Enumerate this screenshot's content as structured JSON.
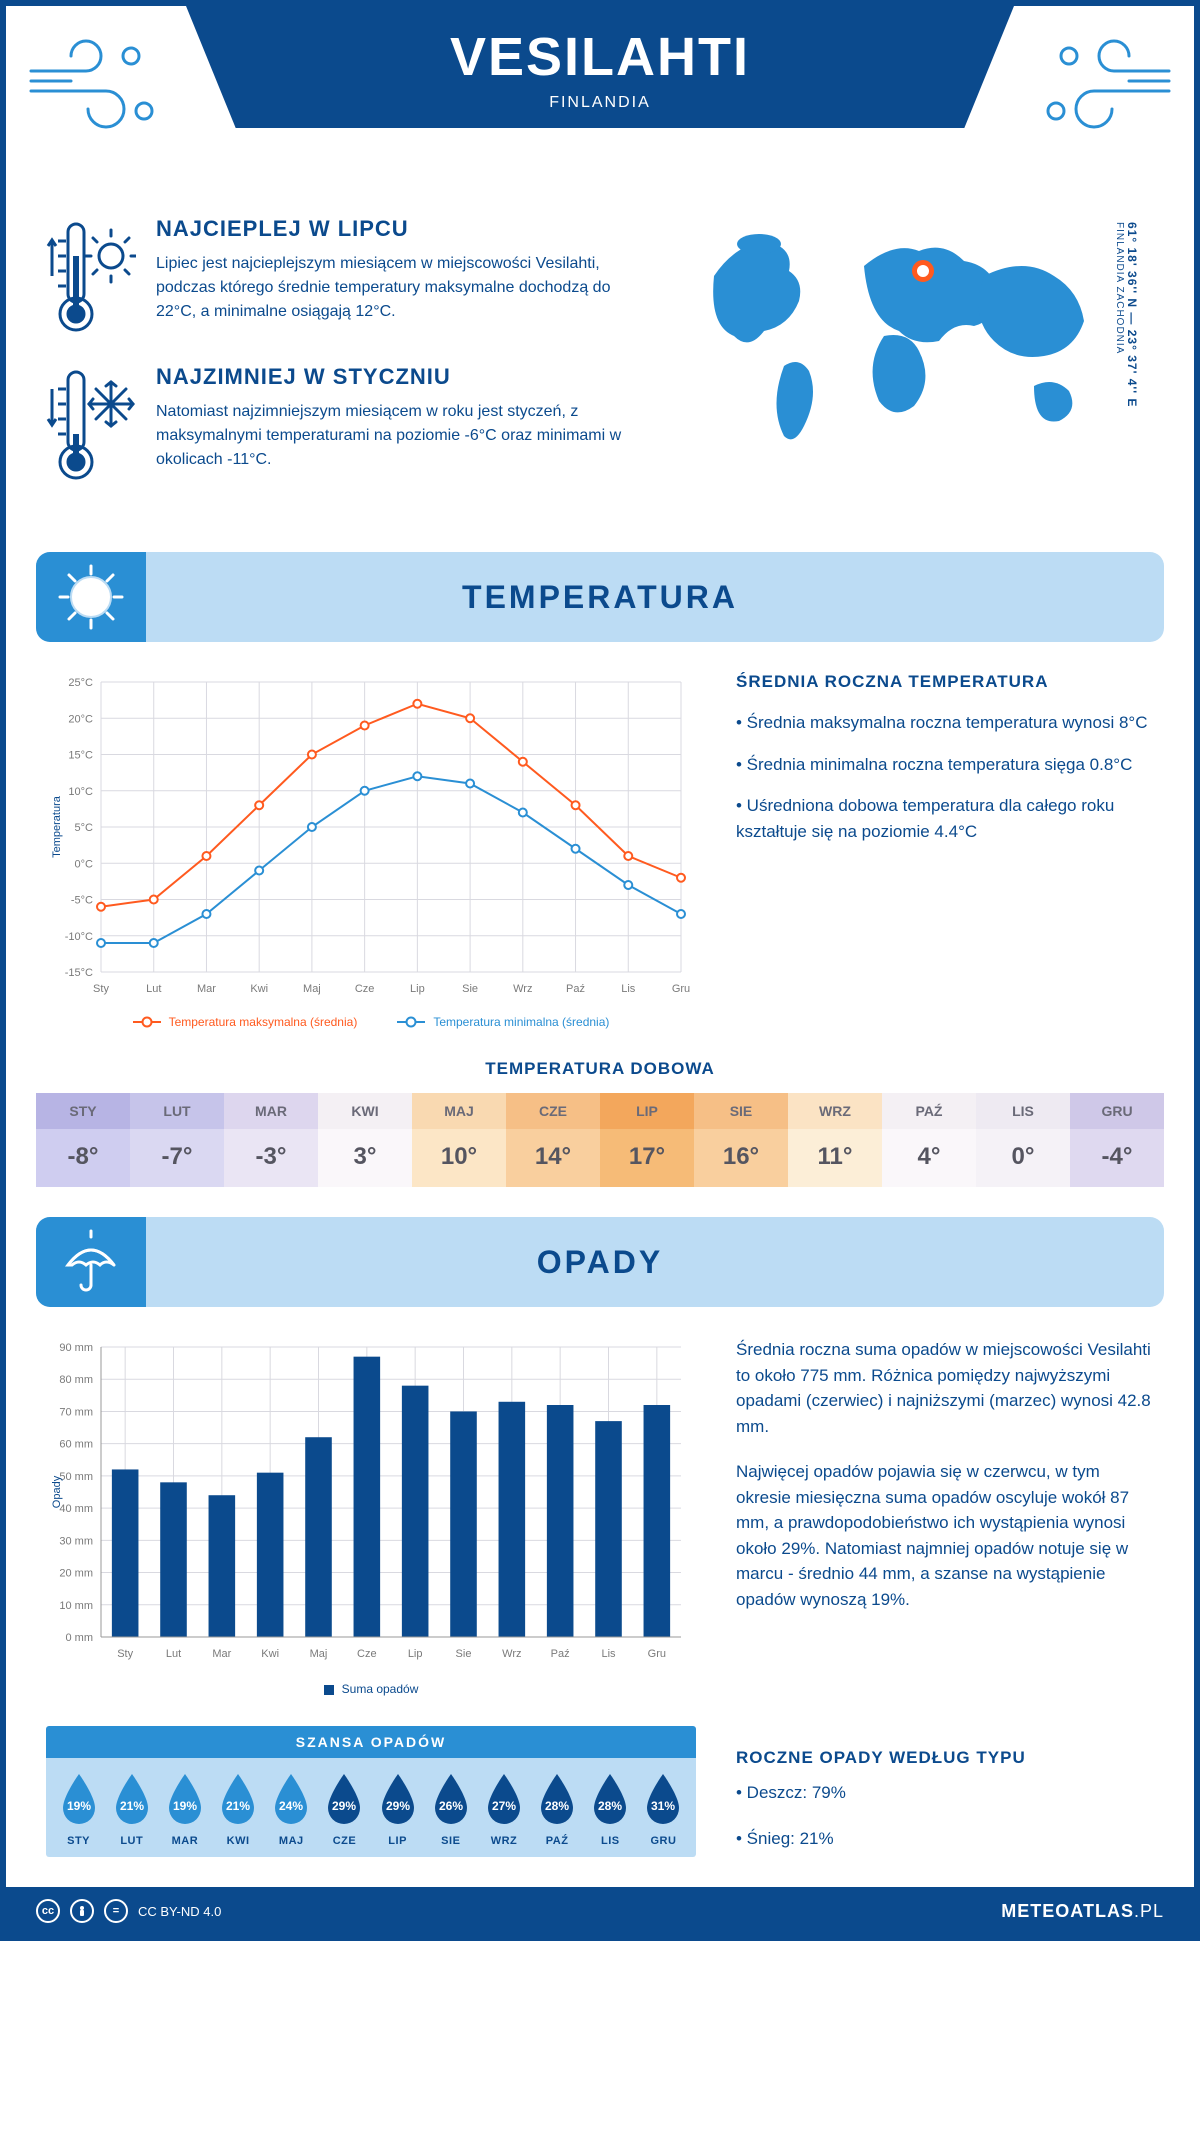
{
  "header": {
    "title": "VESILAHTI",
    "subtitle": "FINLANDIA"
  },
  "coords": {
    "main": "61° 18' 36'' N — 23° 37' 4'' E",
    "region": "FINLANDIA ZACHODNIA"
  },
  "intro": {
    "warm": {
      "title": "NAJCIEPLEJ W LIPCU",
      "text": "Lipiec jest najcieplejszym miesiącem w miejscowości Vesilahti, podczas którego średnie temperatury maksymalne dochodzą do 22°C, a minimalne osiągają 12°C."
    },
    "cold": {
      "title": "NAJZIMNIEJ W STYCZNIU",
      "text": "Natomiast najzimniejszym miesiącem w roku jest styczeń, z maksymalnymi temperaturami na poziomie -6°C oraz minimami w okolicach -11°C."
    }
  },
  "sections": {
    "temperature": "TEMPERATURA",
    "precipitation": "OPADY"
  },
  "tempChart": {
    "months": [
      "Sty",
      "Lut",
      "Mar",
      "Kwi",
      "Maj",
      "Cze",
      "Lip",
      "Sie",
      "Wrz",
      "Paź",
      "Lis",
      "Gru"
    ],
    "max": [
      -6,
      -5,
      1,
      8,
      15,
      19,
      22,
      20,
      14,
      8,
      1,
      -2
    ],
    "min": [
      -11,
      -11,
      -7,
      -1,
      5,
      10,
      12,
      11,
      7,
      2,
      -3,
      -7
    ],
    "ymin": -15,
    "ymax": 25,
    "ystep": 5,
    "legend_max": "Temperatura maksymalna (średnia)",
    "legend_min": "Temperatura minimalna (średnia)",
    "ylabel": "Temperatura",
    "color_max": "#ff5a1f",
    "color_min": "#2a8fd4",
    "grid_color": "#d9d9e0"
  },
  "tempRight": {
    "heading": "ŚREDNIA ROCZNA TEMPERATURA",
    "bullets": [
      "Średnia maksymalna roczna temperatura wynosi 8°C",
      "Średnia minimalna roczna temperatura sięga 0.8°C",
      "Uśredniona dobowa temperatura dla całego roku kształtuje się na poziomie 4.4°C"
    ]
  },
  "dobowa": {
    "title": "TEMPERATURA DOBOWA",
    "months": [
      "STY",
      "LUT",
      "MAR",
      "KWI",
      "MAJ",
      "CZE",
      "LIP",
      "SIE",
      "WRZ",
      "PAŹ",
      "LIS",
      "GRU"
    ],
    "values": [
      "-8°",
      "-7°",
      "-3°",
      "3°",
      "10°",
      "14°",
      "17°",
      "16°",
      "11°",
      "4°",
      "0°",
      "-4°"
    ],
    "head_colors": [
      "#b7b4e4",
      "#c6c4ea",
      "#ddd6ee",
      "#f4f0f4",
      "#f9d9b1",
      "#f6bf86",
      "#f3a75c",
      "#f6bf86",
      "#fbe3c4",
      "#f4f0f4",
      "#eeeaf2",
      "#cfc8e8"
    ],
    "body_colors": [
      "#cfcdf0",
      "#dad8f2",
      "#eae5f4",
      "#faf7fa",
      "#fce6c6",
      "#f9cf9e",
      "#f6bb77",
      "#f9cf9e",
      "#fceed7",
      "#faf7fa",
      "#f5f2f7",
      "#dfd9f0"
    ]
  },
  "barChart": {
    "months": [
      "Sty",
      "Lut",
      "Mar",
      "Kwi",
      "Maj",
      "Cze",
      "Lip",
      "Sie",
      "Wrz",
      "Paź",
      "Lis",
      "Gru"
    ],
    "values": [
      52,
      48,
      44,
      51,
      62,
      87,
      78,
      70,
      73,
      72,
      67,
      72
    ],
    "ymax": 90,
    "ystep": 10,
    "legend": "Suma opadów",
    "ylabel": "Opady",
    "bar_color": "#0b4a8d",
    "grid_color": "#d9d9e0"
  },
  "opadyRight": {
    "p1": "Średnia roczna suma opadów w miejscowości Vesilahti to około 775 mm. Różnica pomiędzy najwyższymi opadami (czerwiec) i najniższymi (marzec) wynosi 42.8 mm.",
    "p2": "Najwięcej opadów pojawia się w czerwcu, w tym okresie miesięczna suma opadów oscyluje wokół 87 mm, a prawdopodobieństwo ich wystąpienia wynosi około 29%. Natomiast najmniej opadów notuje się w marcu - średnio 44 mm, a szanse na wystąpienie opadów wynoszą 19%.",
    "typeHeading": "ROCZNE OPADY WEDŁUG TYPU",
    "types": [
      "Deszcz: 79%",
      "Śnieg: 21%"
    ]
  },
  "szansa": {
    "title": "SZANSA OPADÓW",
    "months": [
      "STY",
      "LUT",
      "MAR",
      "KWI",
      "MAJ",
      "CZE",
      "LIP",
      "SIE",
      "WRZ",
      "PAŹ",
      "LIS",
      "GRU"
    ],
    "values": [
      "19%",
      "21%",
      "19%",
      "21%",
      "24%",
      "29%",
      "29%",
      "26%",
      "27%",
      "28%",
      "28%",
      "31%"
    ],
    "dark": [
      false,
      false,
      false,
      false,
      false,
      true,
      true,
      true,
      true,
      true,
      true,
      true
    ],
    "light_color": "#2a8fd4",
    "dark_color": "#0b4a8d"
  },
  "footer": {
    "license": "CC BY-ND 4.0",
    "brand_bold": "METEOATLAS",
    "brand_light": ".PL"
  },
  "colors": {
    "primary": "#0b4a8d",
    "accent": "#2a8fd4",
    "light": "#bcdcf4",
    "orange": "#ff5a1f"
  }
}
